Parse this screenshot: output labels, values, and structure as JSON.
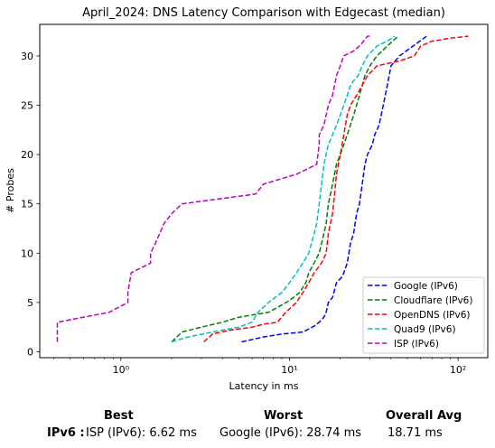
{
  "chart_data": {
    "type": "line",
    "title": "April_2024: DNS Latency Comparison with Edgecast (median)",
    "xlabel": "Latency in ms",
    "ylabel": "# Probes",
    "xscale": "log",
    "xlim": [
      0.33,
      150
    ],
    "ylim": [
      -0.6,
      33.2
    ],
    "xticks": [
      1,
      10,
      100
    ],
    "xtick_labels": [
      "10⁰",
      "10¹",
      "10²"
    ],
    "yticks": [
      0,
      5,
      10,
      15,
      20,
      25,
      30
    ],
    "grid": false,
    "legend_position": "lower-right",
    "series": [
      {
        "name": "Google (IPv6)",
        "color": "#0000ff",
        "x": [
          5.2,
          7.0,
          9.0,
          12.0,
          14.0,
          15.0,
          16.0,
          16.5,
          17.0,
          18.0,
          19.0,
          20.5,
          21.0,
          22.0,
          23.0,
          24.0,
          24.5,
          25.0,
          26.0,
          26.5,
          27.0,
          27.5,
          28.0,
          29.0,
          31.0,
          32.0,
          34.0,
          35.0,
          36.0,
          37.0,
          38.0,
          40.0,
          45.0,
          65.0
        ],
        "y": [
          1,
          1.5,
          1.8,
          2,
          2.6,
          3,
          3.5,
          4,
          5,
          5.5,
          7,
          7.6,
          8,
          9,
          11,
          12,
          13,
          14,
          15,
          16,
          17,
          18,
          19,
          20,
          21,
          22,
          23,
          24,
          25,
          26,
          27,
          29,
          30,
          32
        ]
      },
      {
        "name": "Cloudflare (IPv6)",
        "color": "#008000",
        "x": [
          2.0,
          2.3,
          3.0,
          4.0,
          5.0,
          7.5,
          8.5,
          10.0,
          11.5,
          12.5,
          13.0,
          14.0,
          15.0,
          16.0,
          16.5,
          17.0,
          17.5,
          18.0,
          19.0,
          20.0,
          21.0,
          22.0,
          23.0,
          24.0,
          25.0,
          26.0,
          27.0,
          28.0,
          30.0,
          33.0,
          38.0,
          44.0
        ],
        "y": [
          1,
          2,
          2.5,
          3,
          3.5,
          4,
          4.5,
          5.2,
          6,
          7,
          8,
          9,
          10,
          12,
          13,
          15,
          16,
          17,
          19,
          20,
          21,
          22,
          23,
          24,
          25,
          26,
          27,
          28,
          29,
          30,
          31,
          32
        ]
      },
      {
        "name": "OpenDNS (IPv6)",
        "color": "#ff0000",
        "x": [
          3.1,
          3.5,
          4.5,
          6.0,
          7.0,
          8.5,
          9.5,
          11.0,
          12.0,
          13.0,
          14.0,
          15.5,
          16.5,
          17.0,
          18.0,
          18.5,
          19.0,
          20.0,
          21.0,
          22.0,
          23.0,
          25.0,
          27.0,
          29.0,
          33.0,
          45.0,
          55.0,
          60.0,
          70.0,
          90.0,
          115.0
        ],
        "y": [
          1,
          1.8,
          2.2,
          2.5,
          2.8,
          3,
          4,
          5,
          6,
          7,
          8,
          9,
          10,
          12,
          14,
          16,
          18,
          20,
          22,
          24,
          25,
          26,
          27,
          28,
          29,
          29.5,
          30,
          31,
          31.5,
          31.8,
          32
        ]
      },
      {
        "name": "Quad9 (IPv6)",
        "color": "#00bfbf",
        "x": [
          2.0,
          2.5,
          3.5,
          5.0,
          6.0,
          6.5,
          7.5,
          9.0,
          10.0,
          11.0,
          12.0,
          13.0,
          13.5,
          14.0,
          14.5,
          15.0,
          15.5,
          16.0,
          17.0,
          18.0,
          19.0,
          20.0,
          21.0,
          22.0,
          23.0,
          24.0,
          25.5,
          27.0,
          29.0,
          33.0,
          38.0,
          42.0
        ],
        "y": [
          1,
          1.5,
          2,
          2.5,
          3,
          4,
          5,
          6,
          7,
          8,
          9,
          10,
          11,
          12,
          13,
          15,
          17,
          19,
          21,
          22,
          23,
          24,
          25,
          26,
          27,
          27.5,
          28,
          29,
          30,
          31,
          31.5,
          32
        ]
      },
      {
        "name": "ISP (IPv6)",
        "color": "#bf00bf",
        "x": [
          0.42,
          0.42,
          0.85,
          1.1,
          1.1,
          1.15,
          1.5,
          1.5,
          1.6,
          1.7,
          1.8,
          2.0,
          2.3,
          6.3,
          7.0,
          11.0,
          14.5,
          15.0,
          15.0,
          16.0,
          16.5,
          17.0,
          18.0,
          18.5,
          19.0,
          20.0,
          21.0,
          24.0,
          26.0,
          27.5,
          29.0,
          30.0
        ],
        "y": [
          1,
          3,
          4,
          5,
          6,
          8,
          9,
          10,
          11,
          12,
          13,
          14,
          15,
          16,
          17,
          18,
          19,
          21,
          22,
          23,
          24,
          25,
          26,
          27,
          28,
          29,
          30,
          30.5,
          31,
          31.5,
          32,
          32
        ]
      }
    ]
  },
  "summary": {
    "best_header": "Best",
    "worst_header": "Worst",
    "avg_header": "Overall Avg",
    "protocol_label": "IPv6 :",
    "best_value": "ISP (IPv6): 6.62 ms",
    "worst_value": "Google (IPv6): 28.74 ms",
    "avg_value": "18.71 ms"
  }
}
